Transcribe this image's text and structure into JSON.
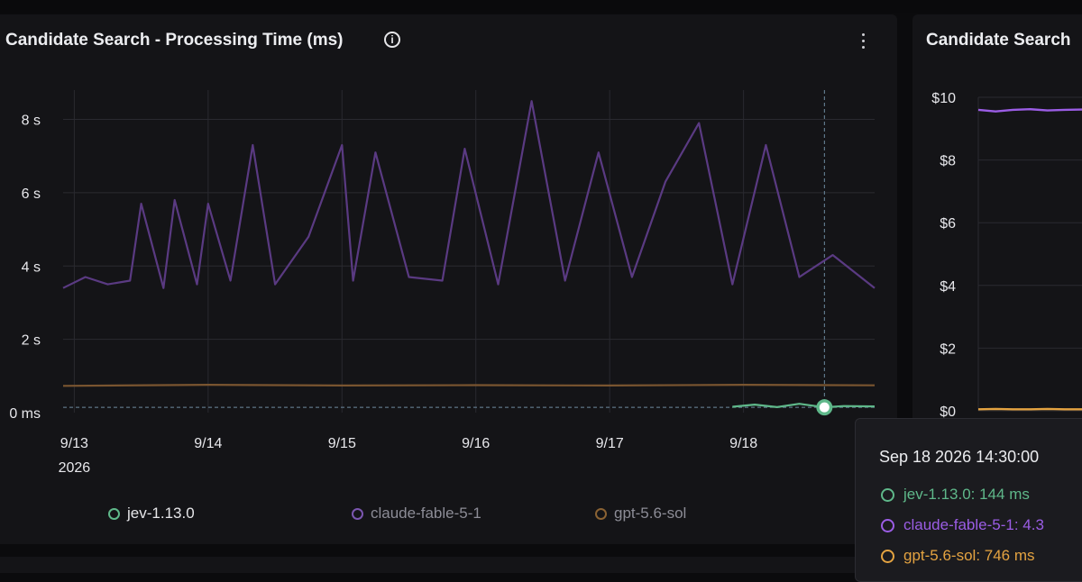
{
  "panels": {
    "left_title": "Candidate Search - Processing Time (ms)",
    "right_title": "Candidate Search"
  },
  "icons": {
    "info": "info-circle-icon",
    "menu": "kebab-menu-icon"
  },
  "colors": {
    "jev": "#5fb88a",
    "claude": "#5a3a82",
    "claude_right": "#9b5de5",
    "claude_legend": "#7b56b0",
    "gpt": "#7a5530",
    "gpt_right": "#e4a341",
    "grid": "#2a2a30"
  },
  "chart_data": [
    {
      "type": "line",
      "title": "Candidate Search - Processing Time (ms)",
      "xlabel": "",
      "ylabel": "",
      "y_unit": "ms",
      "ylim": [
        0,
        8800
      ],
      "yticks": [
        0,
        2000,
        4000,
        6000,
        8000
      ],
      "ytick_labels": [
        "0 ms",
        "2 s",
        "4 s",
        "6 s",
        "8 s"
      ],
      "xlim": [
        "2026-09-12 22:00",
        "2026-09-18 23:30"
      ],
      "xticks": [
        "2026-09-13",
        "2026-09-14",
        "2026-09-15",
        "2026-09-16",
        "2026-09-17",
        "2026-09-18"
      ],
      "xtick_labels": [
        "9/13",
        "9/14",
        "9/15",
        "9/16",
        "9/17",
        "9/18"
      ],
      "xtick_year_label": "2026",
      "grid": true,
      "legend": "bottom",
      "hover_time": "2026-09-18 14:30",
      "hover_value": 144,
      "series": [
        {
          "name": "jev-1.13.0",
          "color": "#5fb88a",
          "x": [
            "2026-09-17 22:00",
            "2026-09-18 02:00",
            "2026-09-18 06:00",
            "2026-09-18 10:00",
            "2026-09-18 14:30",
            "2026-09-18 18:00",
            "2026-09-18 23:30"
          ],
          "y": [
            160,
            220,
            150,
            240,
            144,
            180,
            170
          ]
        },
        {
          "name": "claude-fable-5-1",
          "color": "#5a3a82",
          "x": [
            "2026-09-12 22:00",
            "2026-09-13 02:00",
            "2026-09-13 06:00",
            "2026-09-13 10:00",
            "2026-09-13 12:00",
            "2026-09-13 16:00",
            "2026-09-13 18:00",
            "2026-09-13 22:00",
            "2026-09-14 00:00",
            "2026-09-14 04:00",
            "2026-09-14 08:00",
            "2026-09-14 12:00",
            "2026-09-14 18:00",
            "2026-09-15 00:00",
            "2026-09-15 02:00",
            "2026-09-15 06:00",
            "2026-09-15 12:00",
            "2026-09-15 18:00",
            "2026-09-15 22:00",
            "2026-09-16 04:00",
            "2026-09-16 10:00",
            "2026-09-16 16:00",
            "2026-09-16 22:00",
            "2026-09-17 04:00",
            "2026-09-17 10:00",
            "2026-09-17 16:00",
            "2026-09-17 22:00",
            "2026-09-18 04:00",
            "2026-09-18 10:00",
            "2026-09-18 16:00",
            "2026-09-18 23:30"
          ],
          "y": [
            3400,
            3700,
            3500,
            3600,
            5700,
            3400,
            5800,
            3500,
            5700,
            3600,
            7300,
            3500,
            4800,
            7300,
            3600,
            7100,
            3700,
            3600,
            7200,
            3500,
            8500,
            3600,
            7100,
            3700,
            6300,
            7900,
            3500,
            7300,
            3700,
            4300,
            3400
          ]
        },
        {
          "name": "gpt-5.6-sol",
          "color": "#7a5530",
          "x": [
            "2026-09-12 22:00",
            "2026-09-14 00:00",
            "2026-09-15 00:00",
            "2026-09-16 00:00",
            "2026-09-17 00:00",
            "2026-09-18 00:00",
            "2026-09-18 23:30"
          ],
          "y": [
            730,
            760,
            740,
            750,
            740,
            760,
            746
          ]
        }
      ],
      "tooltip": {
        "time": "Sep 18 2026 14:30:00",
        "rows": [
          {
            "label": "jev-1.13.0: 144 ms",
            "color": "#5fb88a"
          },
          {
            "label": "claude-fable-5-1: 4.3",
            "color": "#9b5de5"
          },
          {
            "label": "gpt-5.6-sol: 746 ms",
            "color": "#e4a341"
          }
        ]
      }
    },
    {
      "type": "line",
      "title": "Candidate Search",
      "ylim": [
        0,
        10
      ],
      "yticks": [
        0,
        2,
        4,
        6,
        8,
        10
      ],
      "ytick_labels": [
        "$0",
        "$2",
        "$4",
        "$6",
        "$8",
        "$10"
      ],
      "grid": true,
      "series": [
        {
          "color": "#9b5de5",
          "y": [
            9.6,
            9.55,
            9.6,
            9.62,
            9.58,
            9.6,
            9.61
          ]
        },
        {
          "color": "#e4a341",
          "y": [
            0.05,
            0.06,
            0.05,
            0.05,
            0.06,
            0.05,
            0.05
          ]
        }
      ]
    }
  ],
  "legend": [
    {
      "label": "jev-1.13.0",
      "color": "#5fb88a",
      "label_color": "#e6e6e9"
    },
    {
      "label": "claude-fable-5-1",
      "color": "#7b56b0",
      "label_color": "#8c8c96"
    },
    {
      "label": "gpt-5.6-sol",
      "color": "#8a6233",
      "label_color": "#8c8c96"
    }
  ]
}
